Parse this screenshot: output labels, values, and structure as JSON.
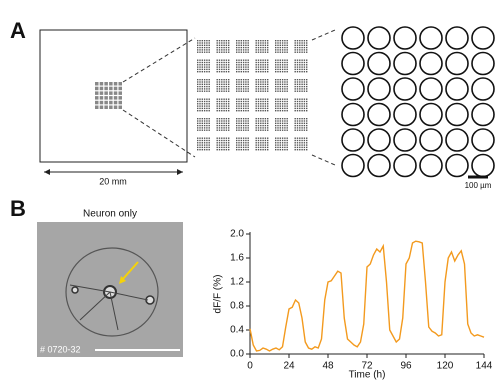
{
  "panel_labels": [
    "A",
    "B"
  ],
  "panel_a": {
    "scale_label": "20 mm",
    "scale_bar_label": "100 µm"
  },
  "panel_b": {
    "image_title": "Neuron only",
    "image_id": "# 0720-32"
  },
  "chart_data": {
    "type": "line",
    "x_label": "Time (h)",
    "y_label": "dF/F (%)",
    "x": [
      0,
      2,
      4,
      6,
      8,
      10,
      12,
      14,
      16,
      18,
      20,
      22,
      24,
      26,
      28,
      30,
      32,
      34,
      36,
      38,
      40,
      42,
      44,
      46,
      48,
      50,
      52,
      54,
      56,
      58,
      60,
      62,
      64,
      66,
      68,
      70,
      72,
      74,
      76,
      78,
      80,
      82,
      84,
      86,
      88,
      90,
      92,
      94,
      96,
      98,
      100,
      102,
      104,
      106,
      108,
      110,
      112,
      114,
      116,
      118,
      120,
      122,
      124,
      126,
      128,
      130,
      132,
      134,
      136,
      138,
      140,
      142,
      144
    ],
    "series": [
      {
        "color": "#f39a1e",
        "values": [
          0.42,
          0.15,
          0.05,
          0.06,
          0.1,
          0.08,
          0.05,
          0.08,
          0.1,
          0.07,
          0.12,
          0.45,
          0.75,
          0.78,
          0.9,
          0.85,
          0.6,
          0.2,
          0.1,
          0.08,
          0.12,
          0.1,
          0.25,
          0.9,
          1.2,
          1.22,
          1.3,
          1.38,
          1.35,
          0.6,
          0.25,
          0.2,
          0.15,
          0.12,
          0.2,
          0.5,
          1.45,
          1.5,
          1.65,
          1.75,
          1.7,
          1.8,
          1.2,
          0.4,
          0.3,
          0.2,
          0.25,
          0.6,
          1.5,
          1.6,
          1.85,
          1.88,
          1.87,
          1.85,
          1.2,
          0.45,
          0.38,
          0.35,
          0.3,
          0.32,
          1.2,
          1.6,
          1.7,
          1.55,
          1.65,
          1.72,
          1.5,
          0.5,
          0.35,
          0.3,
          0.32,
          0.3,
          0.28
        ]
      }
    ],
    "xlim": [
      0,
      144
    ],
    "xticks": [
      0,
      24,
      48,
      72,
      96,
      120,
      144
    ],
    "ylim": [
      0,
      2.0
    ],
    "yticks": [
      {
        "value": 0,
        "label": "0.0"
      },
      0.4,
      0.8,
      1.2,
      1.6,
      {
        "value": 2,
        "label": "2.0"
      }
    ]
  }
}
